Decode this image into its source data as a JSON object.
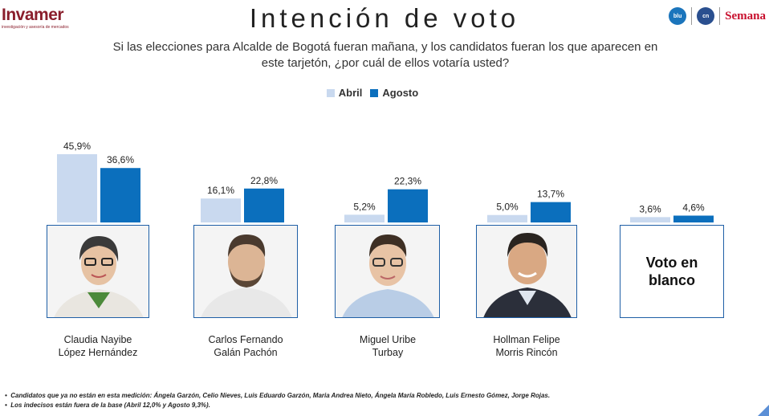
{
  "header": {
    "logo_text": "Invamer",
    "logo_tagline": "investigación y asesoría de mercados",
    "title": "Intención de voto",
    "partner_logos": [
      {
        "name": "blu-radio-logo",
        "text": "blu",
        "color": "#1b75bc"
      },
      {
        "name": "noticias-caracol-logo",
        "text": "cn",
        "color": "#2a4f8f"
      },
      {
        "name": "semana-logo",
        "text": "Semana",
        "color": "#c8102e"
      }
    ]
  },
  "question": "Si las elecciones para Alcalde de Bogotá fueran mañana, y los candidatos fueran los que aparecen en este tarjetón, ¿por cuál de ellos votaría usted?",
  "legend": [
    {
      "label": "Abril",
      "color": "#c9d9ef"
    },
    {
      "label": "Agosto",
      "color": "#0b6fbd"
    }
  ],
  "chart_data": {
    "type": "bar",
    "categories": [
      "Claudia Nayibe López Hernández",
      "Carlos Fernando Galán Pachón",
      "Miguel Uribe Turbay",
      "Hollman Felipe Morris Rincón",
      "Voto en blanco"
    ],
    "series": [
      {
        "name": "Abril",
        "values": [
          45.9,
          16.1,
          5.2,
          5.0,
          3.6
        ],
        "labels": [
          "45,9%",
          "16,1%",
          "5,2%",
          "5,0%",
          "3,6%"
        ],
        "color": "#c9d9ef"
      },
      {
        "name": "Agosto",
        "values": [
          36.6,
          22.8,
          22.3,
          13.7,
          4.6
        ],
        "labels": [
          "36,6%",
          "22,8%",
          "22,3%",
          "13,7%",
          "4,6%"
        ],
        "color": "#0b6fbd"
      }
    ],
    "ylim": [
      0,
      50
    ],
    "grid": false,
    "legend_position": "top"
  },
  "candidates": [
    {
      "line1": "Claudia Nayibe",
      "line2": "López Hernández"
    },
    {
      "line1": "Carlos Fernando",
      "line2": "Galán Pachón"
    },
    {
      "line1": "Miguel Uribe",
      "line2": "Turbay"
    },
    {
      "line1": "Hollman Felipe",
      "line2": "Morris Rincón"
    }
  ],
  "blank_vote_label": "Voto en\nblanco",
  "notes": [
    "Candidatos que ya no están en esta medición: Ángela Garzón, Celio Nieves, Luis Eduardo Garzón, Maria Andrea Nieto, Ángela María Robledo, Luis Ernesto Gómez, Jorge Rojas.",
    "Los indecisos están fuera de la base (Abril 12,0% y Agosto 9,3%)."
  ],
  "colors": {
    "accent": "#0b6fbd",
    "light": "#c9d9ef",
    "box_border": "#1f5fa6",
    "brand": "#8a1e2c"
  }
}
